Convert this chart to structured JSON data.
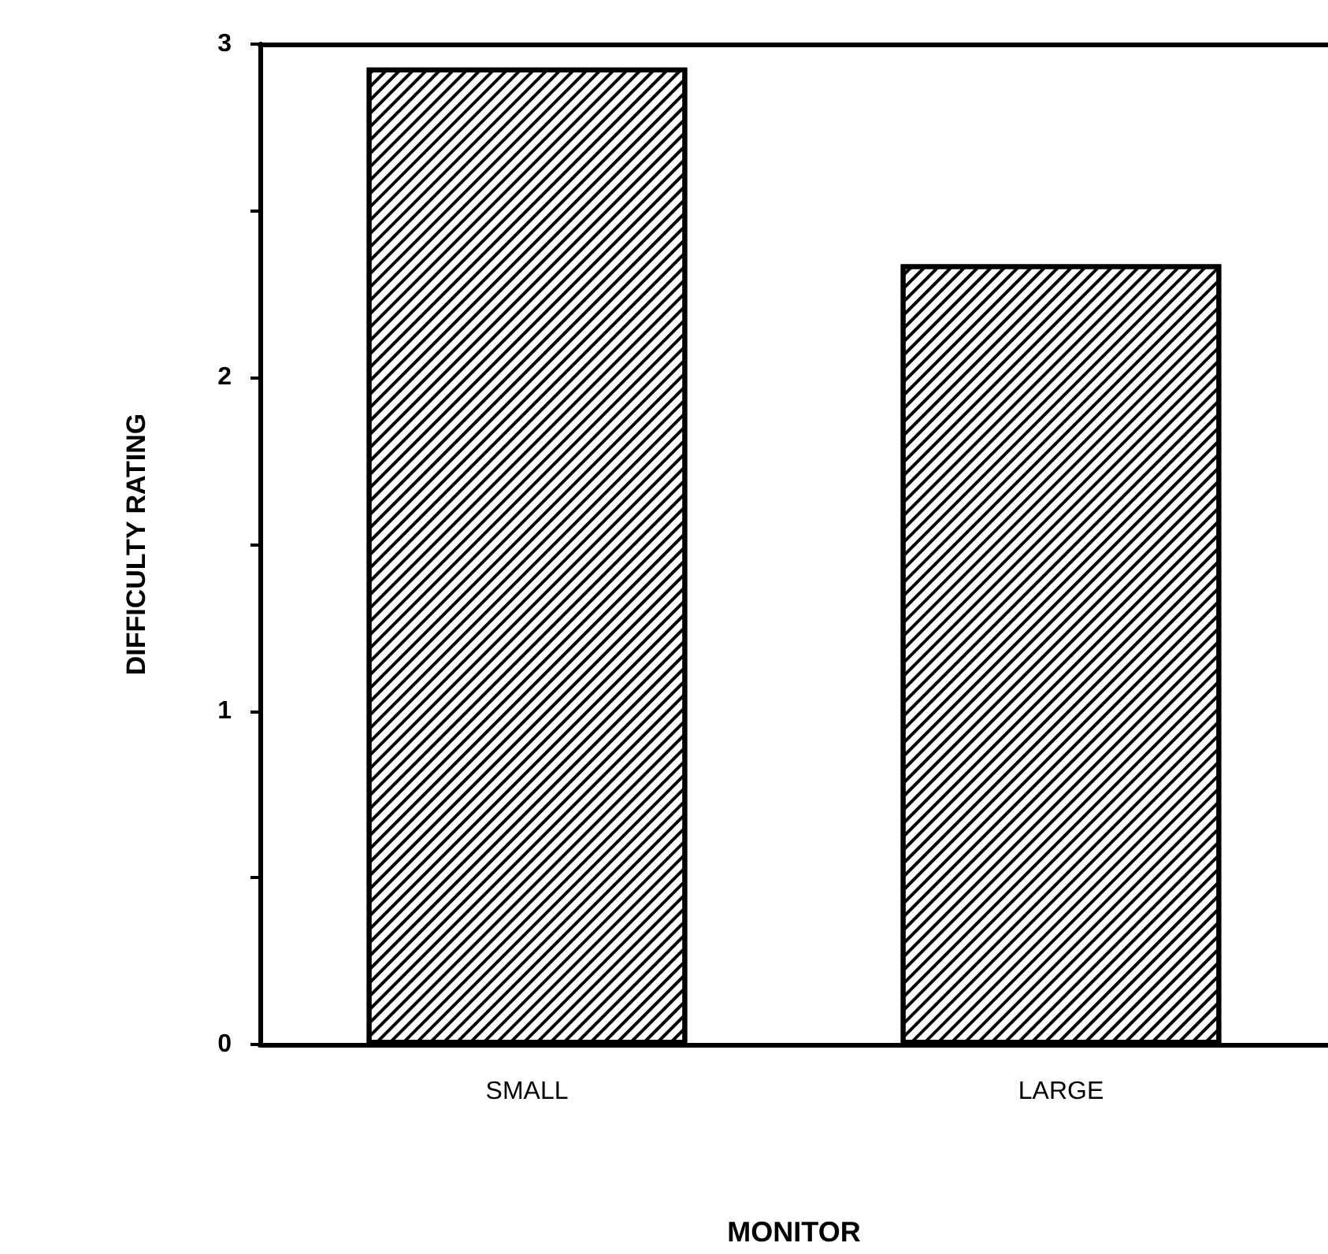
{
  "chart_data": {
    "type": "bar",
    "xlabel": "MONITOR",
    "ylabel": "DIFFICULTY RATING",
    "categories": [
      "SMALL",
      "LARGE"
    ],
    "values": [
      2.93,
      2.34
    ],
    "color": "#000000",
    "ylim": [
      0,
      3
    ],
    "yticks": [
      0,
      {
        "value": 0.5,
        "label": null
      },
      1,
      {
        "value": 1.5,
        "label": null
      },
      2,
      {
        "value": 2.5,
        "label": null
      },
      3
    ],
    "grid": false
  }
}
